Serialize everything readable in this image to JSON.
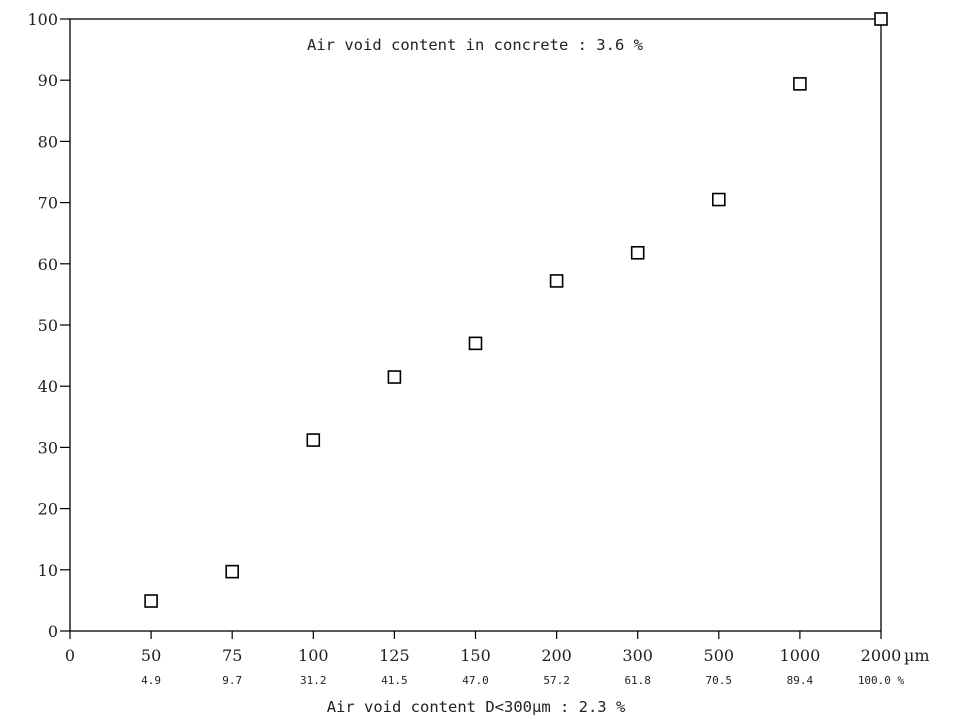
{
  "chart_data": {
    "type": "scatter",
    "categories": [
      "50",
      "75",
      "100",
      "125",
      "150",
      "200",
      "300",
      "500",
      "1000",
      "2000"
    ],
    "x_origin_label": "0",
    "x_unit": "µm",
    "cumulative_labels": [
      "4.9",
      "9.7",
      "31.2",
      "41.5",
      "47.0",
      "57.2",
      "61.8",
      "70.5",
      "89.4",
      "100.0 %"
    ],
    "values": [
      4.9,
      9.7,
      31.2,
      41.5,
      47.0,
      57.2,
      61.8,
      70.5,
      89.4,
      100.0
    ],
    "ylim": [
      0,
      100
    ],
    "yticks": [
      "0",
      "10",
      "20",
      "30",
      "40",
      "50",
      "60",
      "70",
      "80",
      "90",
      "100"
    ],
    "annotation_top": "Air void content in concrete : 3.6 %",
    "annotation_bottom": "Air void content D<300µm : 2.3 %",
    "marker": "hollow-square",
    "grid": false,
    "colors": {
      "axis": "#000000",
      "marker_stroke": "#000000"
    }
  }
}
